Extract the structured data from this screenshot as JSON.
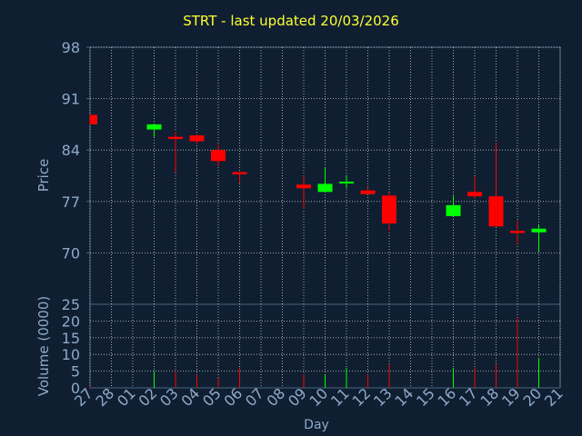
{
  "chart_data": {
    "type": "candlestick",
    "title": "STRT - last updated 20/03/2026",
    "xlabel": "Day",
    "ylabel_price": "Price",
    "ylabel_volume": "Volume (0000)",
    "price_ticks": [
      98,
      91,
      84,
      77,
      70
    ],
    "price_ylim": [
      63,
      98
    ],
    "volume_top_label": "25",
    "volume_ticks": [
      20,
      15,
      10,
      5,
      0
    ],
    "volume_ylim": [
      0,
      25
    ],
    "x_ticks": [
      "27",
      "28",
      "01",
      "02",
      "03",
      "04",
      "05",
      "06",
      "07",
      "08",
      "09",
      "10",
      "11",
      "12",
      "13",
      "14",
      "15",
      "16",
      "17",
      "18",
      "19",
      "20",
      "21"
    ],
    "grid": true,
    "colors": {
      "up": "#00ff00",
      "down": "#ff0000",
      "text": "#8fa9c9",
      "title": "#ffff33",
      "grid": "#c8c8c8",
      "axis": "#4a6584",
      "background": "#0f1f31"
    },
    "candles": [
      {
        "day": "27",
        "open": 88.8,
        "close": 87.5,
        "high": 88.8,
        "low": 87.5,
        "volume": 0.5
      },
      {
        "day": "02",
        "open": 86.8,
        "close": 87.5,
        "high": 87.5,
        "low": 85.8,
        "volume": 5
      },
      {
        "day": "03",
        "open": 85.8,
        "close": 85.5,
        "high": 86.5,
        "low": 81.0,
        "volume": 5
      },
      {
        "day": "04",
        "open": 86.0,
        "close": 85.2,
        "high": 86.2,
        "low": 84.8,
        "volume": 4
      },
      {
        "day": "05",
        "open": 84.0,
        "close": 82.5,
        "high": 84.8,
        "low": 81.8,
        "volume": 3
      },
      {
        "day": "06",
        "open": 81.0,
        "close": 80.7,
        "high": 81.0,
        "low": 79.5,
        "volume": 6
      },
      {
        "day": "09",
        "open": 79.3,
        "close": 78.8,
        "high": 80.5,
        "low": 76.0,
        "volume": 4
      },
      {
        "day": "10",
        "open": 78.3,
        "close": 79.4,
        "high": 81.6,
        "low": 78.3,
        "volume": 4
      },
      {
        "day": "11",
        "open": 79.5,
        "close": 79.7,
        "high": 80.6,
        "low": 78.8,
        "volume": 6
      },
      {
        "day": "12",
        "open": 78.5,
        "close": 78.0,
        "high": 79.0,
        "low": 78.0,
        "volume": 4
      },
      {
        "day": "13",
        "open": 77.8,
        "close": 74.0,
        "high": 78.2,
        "low": 73.0,
        "volume": 7
      },
      {
        "day": "16",
        "open": 75.0,
        "close": 76.5,
        "high": 77.8,
        "low": 75.0,
        "volume": 6
      },
      {
        "day": "17",
        "open": 78.3,
        "close": 77.7,
        "high": 80.4,
        "low": 77.5,
        "volume": 6
      },
      {
        "day": "18",
        "open": 77.7,
        "close": 73.6,
        "high": 85.0,
        "low": 73.6,
        "volume": 7
      },
      {
        "day": "19",
        "open": 73.0,
        "close": 72.7,
        "high": 74.4,
        "low": 71.2,
        "volume": 21
      },
      {
        "day": "20",
        "open": 72.8,
        "close": 73.3,
        "high": 73.8,
        "low": 70.2,
        "volume": 9
      }
    ]
  }
}
